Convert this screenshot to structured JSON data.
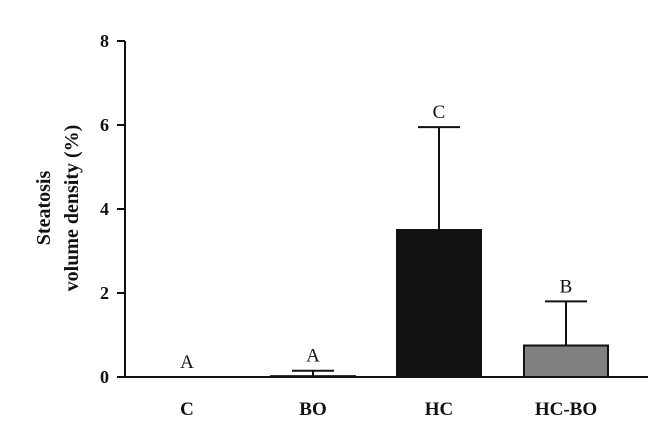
{
  "chart_data": {
    "type": "bar",
    "categories": [
      "C",
      "BO",
      "HC",
      "HC-BO"
    ],
    "values": [
      0,
      0.02,
      3.5,
      0.75
    ],
    "errors": [
      0,
      0.13,
      2.45,
      1.05
    ],
    "significance_labels": [
      "A",
      "A",
      "C",
      "B"
    ],
    "bar_colors": [
      "#111111",
      "#111111",
      "#111111",
      "#808080"
    ],
    "ylabel_lines": [
      "Steatosis",
      "volume density (%)"
    ],
    "xlabel": "",
    "ylim": [
      0,
      8
    ],
    "yticks": [
      0,
      2,
      4,
      6,
      8
    ],
    "grid": false
  }
}
